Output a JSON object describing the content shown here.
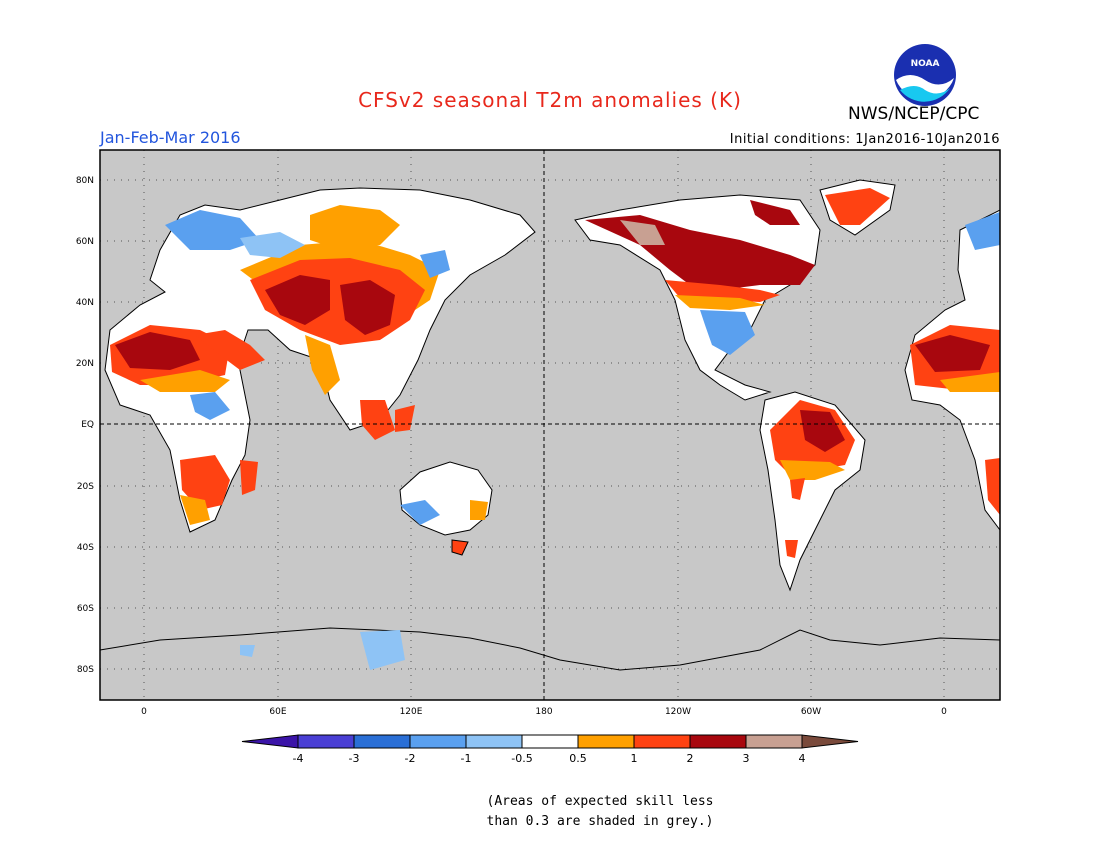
{
  "title": "CFSv2 seasonal T2m anomalies (K)",
  "organization": "NWS/NCEP/CPC",
  "logo_text": "NOAA",
  "period": "Jan-Feb-Mar 2016",
  "initial_conditions": "Initial conditions: 1Jan2016-10Jan2016",
  "lat_labels": [
    "80N",
    "60N",
    "40N",
    "20N",
    "EQ",
    "20S",
    "40S",
    "60S",
    "80S"
  ],
  "lon_labels": [
    "0",
    "60E",
    "120E",
    "180",
    "120W",
    "60W",
    "0"
  ],
  "colorbar": {
    "labels": [
      "-4",
      "-3",
      "-2",
      "-1",
      "-0.5",
      "0.5",
      "1",
      "2",
      "3",
      "4"
    ],
    "colors": [
      "#3b14a8",
      "#4a3fd4",
      "#2a6fd6",
      "#5aa0ef",
      "#8ec3f5",
      "#ffffff",
      "#ffa000",
      "#ff4212",
      "#a8070e",
      "#c8a092",
      "#7a4a3b"
    ]
  },
  "note_line1": "(Areas of expected skill less",
  "note_line2": "than 0.3 are shaded in grey.)",
  "map_colors": {
    "ocean": "#c8c8c8",
    "land_grey": "#c8c8c8",
    "white": "#ffffff",
    "orange": "#ffa000",
    "red": "#ff4212",
    "darkred": "#a8070e",
    "blue": "#5aa0ef",
    "lightblue": "#8ec3f5",
    "tan": "#c8a092"
  }
}
